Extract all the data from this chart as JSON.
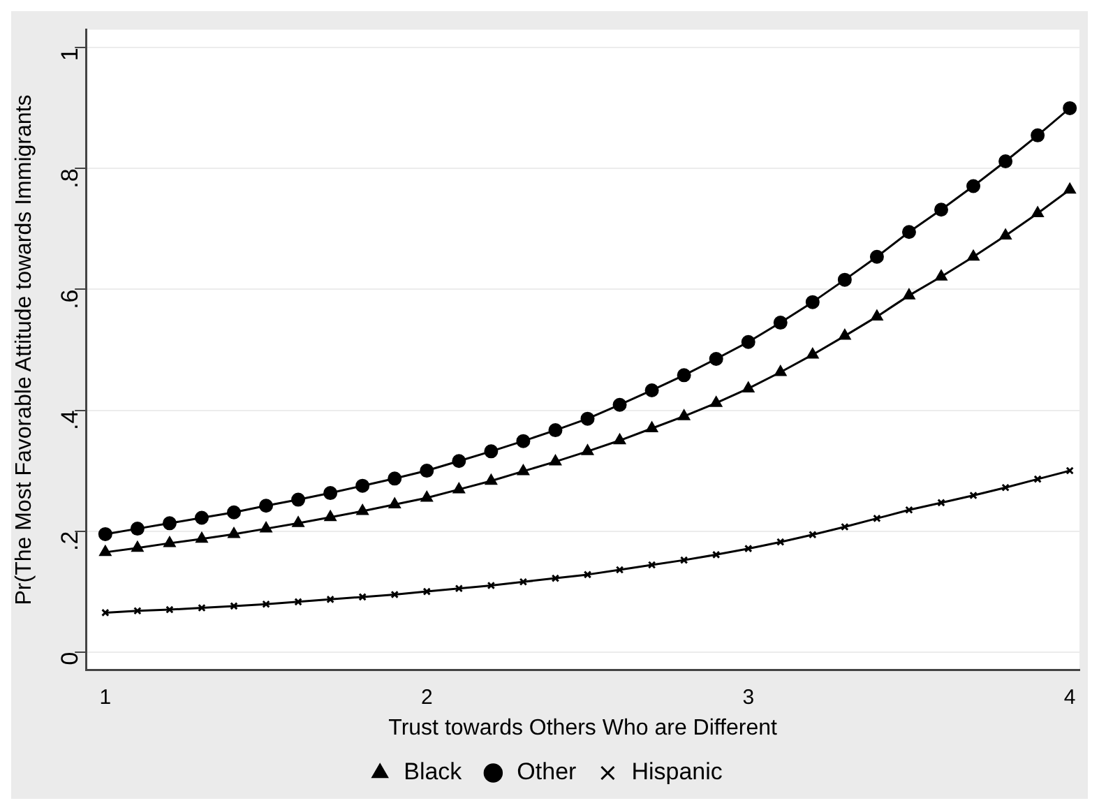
{
  "chart_data": {
    "type": "line",
    "xlabel": "Trust towards Others Who are Different",
    "ylabel": "Pr(The Most Favorable Attitude towards Immigrants",
    "x": [
      1,
      1.1,
      1.2,
      1.3,
      1.4,
      1.5,
      1.6,
      1.7,
      1.8,
      1.9,
      2,
      2.1,
      2.2,
      2.3,
      2.4,
      2.5,
      2.6,
      2.7,
      2.8,
      2.9,
      3,
      3.1,
      3.2,
      3.3,
      3.4,
      3.5,
      3.6,
      3.7,
      3.8,
      3.9,
      4
    ],
    "series": [
      {
        "name": "Black",
        "color": "#000000",
        "marker": "triangle",
        "values": [
          0.165,
          0.172,
          0.18,
          0.187,
          0.195,
          0.204,
          0.213,
          0.223,
          0.233,
          0.244,
          0.255,
          0.269,
          0.283,
          0.299,
          0.315,
          0.332,
          0.35,
          0.37,
          0.39,
          0.412,
          0.436,
          0.463,
          0.492,
          0.523,
          0.555,
          0.59,
          0.621,
          0.654,
          0.689,
          0.726,
          0.765
        ]
      },
      {
        "name": "Other",
        "color": "#000000",
        "marker": "circle",
        "values": [
          0.195,
          0.204,
          0.213,
          0.222,
          0.231,
          0.242,
          0.252,
          0.263,
          0.275,
          0.287,
          0.3,
          0.316,
          0.332,
          0.349,
          0.367,
          0.386,
          0.409,
          0.433,
          0.458,
          0.485,
          0.513,
          0.545,
          0.579,
          0.616,
          0.654,
          0.695,
          0.732,
          0.771,
          0.812,
          0.855,
          0.9
        ]
      },
      {
        "name": "Hispanic",
        "color": "#000000",
        "marker": "cross",
        "values": [
          0.065,
          0.068,
          0.07,
          0.073,
          0.076,
          0.079,
          0.083,
          0.087,
          0.091,
          0.095,
          0.1,
          0.105,
          0.11,
          0.116,
          0.122,
          0.128,
          0.136,
          0.144,
          0.152,
          0.161,
          0.171,
          0.182,
          0.194,
          0.207,
          0.221,
          0.235,
          0.247,
          0.259,
          0.272,
          0.286,
          0.3
        ]
      }
    ],
    "xlim": [
      0.94,
      4.03
    ],
    "xticks": [
      1,
      2,
      3,
      4
    ],
    "ylim": [
      -0.03,
      1.03
    ],
    "yticks": [
      0,
      {
        "value": 0.2,
        "label": ".2"
      },
      {
        "value": 0.4,
        "label": ".4"
      },
      {
        "value": 0.6,
        "label": ".6"
      },
      {
        "value": 0.8,
        "label": ".8"
      },
      1
    ],
    "grid": "y",
    "legend": "bottom",
    "line_style": "solid"
  }
}
